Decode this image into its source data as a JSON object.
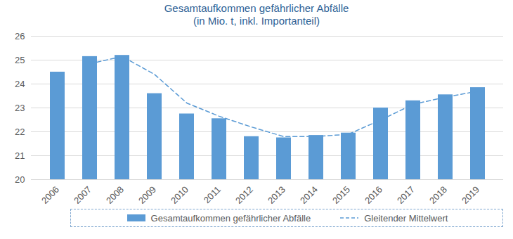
{
  "chart_data": {
    "type": "bar",
    "title": "Gesamtaufkommen gefährlicher Abfälle",
    "subtitle": "(in Mio. t, inkl. Importanteil)",
    "categories": [
      "2006",
      "2007",
      "2008",
      "2009",
      "2010",
      "2011",
      "2012",
      "2013",
      "2014",
      "2015",
      "2016",
      "2017",
      "2018",
      "2019"
    ],
    "series": [
      {
        "name": "Gesamtaufkommen gefährlicher Abfälle",
        "type": "bar",
        "color": "#5b9bd5",
        "values": [
          24.5,
          25.15,
          25.2,
          23.6,
          22.75,
          22.55,
          21.8,
          21.75,
          21.85,
          21.95,
          23.0,
          23.3,
          23.55,
          23.85
        ]
      },
      {
        "name": "Gleitender Mittelwert",
        "type": "line",
        "color": "#5b9bd5",
        "line_style": "dashed",
        "values": [
          null,
          24.85,
          25.15,
          24.4,
          23.2,
          22.65,
          22.2,
          21.8,
          21.8,
          21.9,
          22.5,
          23.15,
          23.45,
          23.7
        ]
      }
    ],
    "ylim": [
      20,
      26
    ],
    "yticks": [
      20,
      21,
      22,
      23,
      24,
      25,
      26
    ],
    "grid": true,
    "legend": "bottom"
  }
}
